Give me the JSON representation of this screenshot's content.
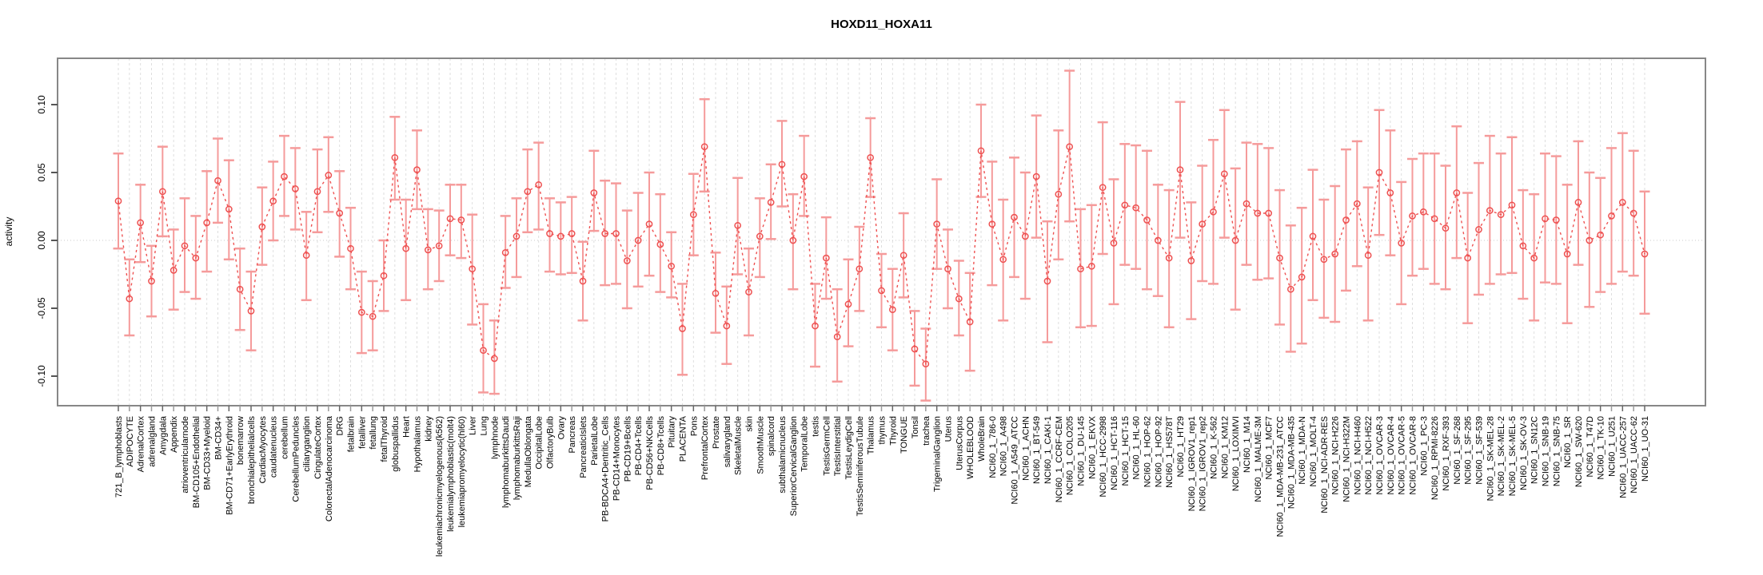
{
  "chart_data": {
    "type": "line",
    "title": "HOXD11_HOXA11",
    "ylabel": "activity",
    "xlabel": "",
    "ylim": [
      -0.127,
      0.135
    ],
    "y_ticks": [
      -0.1,
      -0.05,
      0.0,
      0.05,
      0.1
    ],
    "y_tick_labels": [
      "-0.10",
      "-0.05",
      "0.00",
      "0.05",
      "0.10"
    ],
    "grid": "vertical-dashed",
    "legend": "none",
    "marker": "open-circle",
    "series_color": "#ee5151",
    "errorbar_color": "#f59b9b",
    "zero_line_color": "#c8c8c8",
    "grid_color": "#dedede",
    "box_color": "#878787",
    "categories": [
      "721_B_lymphoblasts",
      "ADIPOCYTE",
      "AdrenalCortex",
      "adrenalgland",
      "Amygdala",
      "Appendix",
      "atrioventricularnode",
      "BM-CD105+Endothelial",
      "BM-CD33+Myeloid",
      "BM-CD34+",
      "BM-CD71+EarlyErythroid",
      "bonemarrow",
      "bronchialepithelialcells",
      "CardiacMyocytes",
      "caudatenucleus",
      "cerebellum",
      "CerebellumPeduncles",
      "ciliaryganglion",
      "CingulateCortex",
      "ColorectalAdenocarcinoma",
      "DRG",
      "fetalbrain",
      "fetalliver",
      "fetallung",
      "fetalThyroid",
      "globuspallidus",
      "Heart",
      "Hypothalamus",
      "kidney",
      "leukemiachronicmyelogenous(k562)",
      "leukemialymphoblastic(molt4)",
      "leukemiapromyelocytic(hl60)",
      "Liver",
      "Lung",
      "lymphnode",
      "lymphomaburkittsDaudi",
      "lymphomaburkittsRaji",
      "MedullaOblongata",
      "OccipitalLobe",
      "OlfactoryBulb",
      "Ovary",
      "Pancreas",
      "PancreaticIslets",
      "ParietalLobe",
      "PB-BDCA4+Dentritic_Cells",
      "PB-CD14+Monocytes",
      "PB-CD19+Bcells",
      "PB-CD4+Tcells",
      "PB-CD56+NKCells",
      "PB-CD8+Tcells",
      "Pituitary",
      "PLACENTA",
      "Pons",
      "PrefrontalCortex",
      "Prostate",
      "salivarygland",
      "SkeletalMuscle",
      "skin",
      "SmoothMuscle",
      "spinalcord",
      "subthalamicnucleus",
      "SuperiorCervicalGanglion",
      "TemporalLobe",
      "testis",
      "TestisGermCell",
      "TestisInterstitial",
      "TestisLeydigCell",
      "TestisSeminiferousTubule",
      "Thalamus",
      "thymus",
      "Thyroid",
      "TONGUE",
      "Tonsil",
      "trachea",
      "TrigeminalGanglion",
      "Uterus",
      "UterusCorpus",
      "WHOLEBLOOD",
      "WholeBrain",
      "NCI60_1_786-0",
      "NCI60_1_A498",
      "NCI60_1_A549_ATCC",
      "NCI60_1_ACHN",
      "NCI60_1_BT-549",
      "NCI60_1_CAKI-1",
      "NCI60_1_CCRF-CEM",
      "NCI60_1_COLO205",
      "NCI60_1_DU-145",
      "NCI60_1_EKVX",
      "NCI60_1_HCC-2998",
      "NCI60_1_HCT-116",
      "NCI60_1_HCT-15",
      "NCI60_1_HL-60",
      "NCI60_1_HOP-62",
      "NCI60_1_HOP-92",
      "NCI60_1_HS578T",
      "NCI60_1_HT29",
      "NCI60_1_IGROV1_rep1",
      "NCI60_1_IGROV1_rep2",
      "NCI60_1_K-562",
      "NCI60_1_KM12",
      "NCI60_1_LOXIMVI",
      "NCI60_1_M14",
      "NCI60_1_MALME-3M",
      "NCI60_1_MCF7",
      "NCI60_1_MDA-MB-231_ATCC",
      "NCI60_1_MDA-MB-435",
      "NCI60_1_MDA-N",
      "NCI60_1_MOLT-4",
      "NCI60_1_NCI-ADR-RES",
      "NCI60_1_NCI-H226",
      "NCI60_1_NCI-H322M",
      "NCI60_1_NCI-H460",
      "NCI60_1_NCI-H522",
      "NCI60_1_OVCAR-3",
      "NCI60_1_OVCAR-4",
      "NCI60_1_OVCAR-5",
      "NCI60_1_OVCAR-8",
      "NCI60_1_PC-3",
      "NCI60_1_RPMI-8226",
      "NCI60_1_RXF-393",
      "NCI60_1_SF-268",
      "NCI60_1_SF-295",
      "NCI60_1_SF-539",
      "NCI60_1_SK-MEL-28",
      "NCI60_1_SK-MEL-2",
      "NCI60_1_SK-MEL-5",
      "NCI60_1_SK-OV-3",
      "NCI60_1_SN12C",
      "NCI60_1_SNB-19",
      "NCI60_1_SNB-75",
      "NCI60_1_SR",
      "NCI60_1_SW-620",
      "NCI60_1_T47D",
      "NCI60_1_TK-10",
      "NCI60_1_U251",
      "NCI60_1_UACC-257",
      "NCI60_1_UACC-62",
      "NCI60_1_UO-31"
    ],
    "values": [
      0.029,
      -0.043,
      0.013,
      -0.03,
      0.036,
      -0.022,
      -0.004,
      -0.013,
      0.013,
      0.044,
      0.023,
      -0.036,
      -0.052,
      0.01,
      0.029,
      0.047,
      0.038,
      -0.011,
      0.036,
      0.048,
      0.02,
      -0.006,
      -0.053,
      -0.056,
      -0.026,
      0.061,
      -0.006,
      0.052,
      -0.007,
      -0.004,
      0.016,
      0.015,
      -0.021,
      -0.081,
      -0.087,
      -0.009,
      0.003,
      0.036,
      0.041,
      0.005,
      0.003,
      0.005,
      -0.03,
      0.035,
      0.005,
      0.005,
      -0.015,
      0.0,
      0.012,
      -0.003,
      -0.019,
      -0.065,
      0.019,
      0.069,
      -0.039,
      -0.063,
      0.011,
      -0.038,
      0.003,
      0.028,
      0.056,
      0.0,
      0.047,
      -0.063,
      -0.013,
      -0.071,
      -0.047,
      -0.021,
      0.061,
      -0.037,
      -0.051,
      -0.011,
      -0.08,
      -0.091,
      0.012,
      -0.021,
      -0.043,
      -0.06,
      0.066,
      0.012,
      -0.014,
      0.017,
      0.003,
      0.047,
      -0.03,
      0.034,
      0.069,
      -0.021,
      -0.019,
      0.039,
      -0.002,
      0.026,
      0.024,
      0.015,
      0.0,
      -0.013,
      0.052,
      -0.015,
      0.012,
      0.021,
      0.049,
      0.0,
      0.027,
      0.02,
      0.02,
      -0.013,
      -0.036,
      -0.027,
      0.003,
      -0.014,
      -0.01,
      0.015,
      0.027,
      -0.011,
      0.05,
      0.035,
      -0.002,
      0.018,
      0.021,
      0.016,
      0.009,
      0.035,
      -0.013,
      0.008,
      0.022,
      0.019,
      0.026,
      -0.004,
      -0.013,
      0.016,
      0.015,
      -0.01,
      0.028,
      0.0,
      0.004,
      0.018,
      0.028,
      0.02,
      -0.01
    ],
    "err_low": [
      -0.006,
      -0.07,
      -0.016,
      -0.056,
      0.003,
      -0.051,
      -0.038,
      -0.043,
      -0.023,
      0.013,
      -0.014,
      -0.066,
      -0.081,
      -0.018,
      0.0,
      0.018,
      0.008,
      -0.044,
      0.006,
      0.021,
      -0.012,
      -0.036,
      -0.083,
      -0.081,
      -0.052,
      0.03,
      -0.044,
      0.023,
      -0.036,
      -0.03,
      -0.011,
      -0.013,
      -0.062,
      -0.112,
      -0.113,
      -0.035,
      -0.027,
      0.006,
      0.008,
      -0.023,
      -0.025,
      -0.024,
      -0.059,
      0.007,
      -0.033,
      -0.032,
      -0.05,
      -0.034,
      -0.026,
      -0.038,
      -0.042,
      -0.099,
      -0.011,
      0.036,
      -0.068,
      -0.091,
      -0.025,
      -0.07,
      -0.027,
      0.001,
      0.025,
      -0.036,
      0.018,
      -0.093,
      -0.043,
      -0.104,
      -0.078,
      -0.052,
      0.032,
      -0.064,
      -0.081,
      -0.042,
      -0.107,
      -0.118,
      -0.021,
      -0.05,
      -0.07,
      -0.096,
      0.032,
      -0.033,
      -0.059,
      -0.027,
      -0.043,
      0.002,
      -0.075,
      -0.014,
      0.014,
      -0.064,
      -0.063,
      -0.01,
      -0.047,
      -0.018,
      -0.021,
      -0.036,
      -0.041,
      -0.064,
      0.002,
      -0.058,
      -0.03,
      -0.032,
      0.002,
      -0.051,
      -0.018,
      -0.029,
      -0.028,
      -0.062,
      -0.082,
      -0.076,
      -0.044,
      -0.057,
      -0.06,
      -0.037,
      -0.019,
      -0.059,
      0.004,
      -0.011,
      -0.047,
      -0.026,
      -0.021,
      -0.032,
      -0.036,
      -0.013,
      -0.061,
      -0.04,
      -0.032,
      -0.025,
      -0.024,
      -0.043,
      -0.059,
      -0.031,
      -0.032,
      -0.061,
      -0.018,
      -0.049,
      -0.038,
      -0.032,
      -0.023,
      -0.026,
      -0.054
    ],
    "err_high": [
      0.064,
      -0.014,
      0.041,
      -0.004,
      0.069,
      0.008,
      0.031,
      0.018,
      0.051,
      0.075,
      0.059,
      -0.006,
      -0.023,
      0.039,
      0.058,
      0.077,
      0.068,
      0.021,
      0.067,
      0.076,
      0.051,
      0.024,
      -0.023,
      -0.03,
      0.0,
      0.091,
      0.03,
      0.081,
      0.023,
      0.022,
      0.041,
      0.041,
      0.019,
      -0.047,
      -0.059,
      0.018,
      0.031,
      0.067,
      0.072,
      0.031,
      0.028,
      0.032,
      -0.001,
      0.066,
      0.044,
      0.042,
      0.022,
      0.035,
      0.05,
      0.034,
      0.006,
      -0.032,
      0.049,
      0.104,
      -0.009,
      -0.034,
      0.046,
      -0.006,
      0.031,
      0.056,
      0.088,
      0.034,
      0.077,
      -0.032,
      0.017,
      -0.036,
      -0.014,
      0.01,
      0.09,
      -0.01,
      -0.021,
      0.02,
      -0.052,
      -0.065,
      0.045,
      0.008,
      -0.015,
      -0.024,
      0.1,
      0.058,
      0.03,
      0.061,
      0.05,
      0.092,
      0.014,
      0.081,
      0.125,
      0.023,
      0.026,
      0.087,
      0.045,
      0.071,
      0.07,
      0.066,
      0.041,
      0.037,
      0.102,
      0.028,
      0.055,
      0.074,
      0.096,
      0.053,
      0.072,
      0.071,
      0.068,
      0.037,
      0.011,
      0.024,
      0.052,
      0.03,
      0.04,
      0.067,
      0.073,
      0.039,
      0.096,
      0.081,
      0.043,
      0.06,
      0.064,
      0.064,
      0.055,
      0.084,
      0.035,
      0.057,
      0.077,
      0.064,
      0.076,
      0.037,
      0.034,
      0.064,
      0.062,
      0.041,
      0.073,
      0.05,
      0.046,
      0.068,
      0.079,
      0.066,
      0.036
    ]
  }
}
